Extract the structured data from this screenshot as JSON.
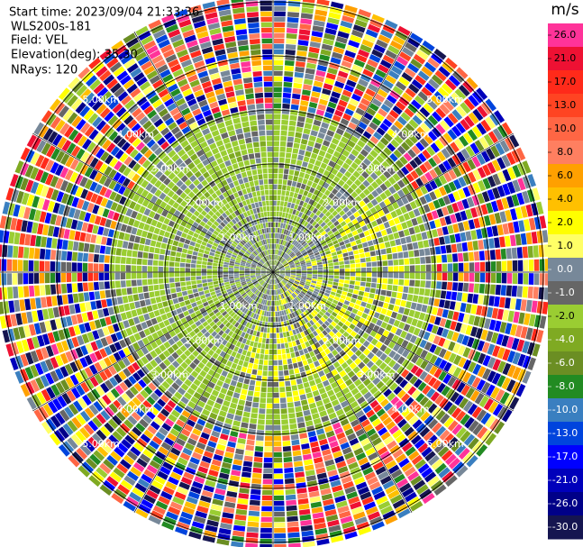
{
  "header": {
    "start_time": "Start time: 2023/09/04 21:33:36",
    "instrument": "WLS200s-181",
    "field": "Field: VEL",
    "elevation": "Elevation(deg): 35.30",
    "nrays": "NRays: 120"
  },
  "range_rings": [
    "1.00km",
    "2.00km",
    "3.00km",
    "4.00km",
    "5.00km"
  ],
  "colorbar": {
    "units": "m/s",
    "ticks": [
      {
        "value": 26,
        "label": "26.0"
      },
      {
        "value": 21,
        "label": "21.0"
      },
      {
        "value": 17,
        "label": "17.0"
      },
      {
        "value": 13,
        "label": "13.0"
      },
      {
        "value": 10,
        "label": "10.0"
      },
      {
        "value": 8,
        "label": "8.0"
      },
      {
        "value": 6,
        "label": "6.0"
      },
      {
        "value": 4,
        "label": "4.0"
      },
      {
        "value": 2,
        "label": "2.0"
      },
      {
        "value": 1,
        "label": "1.0"
      },
      {
        "value": 0,
        "label": "0.0"
      },
      {
        "value": -1,
        "label": "-1.0"
      },
      {
        "value": -2,
        "label": "-2.0"
      },
      {
        "value": -4,
        "label": "-4.0"
      },
      {
        "value": -6,
        "label": "-6.0"
      },
      {
        "value": -8,
        "label": "-8.0"
      },
      {
        "value": -10,
        "label": "-10.0"
      },
      {
        "value": -13,
        "label": "-13.0"
      },
      {
        "value": -17,
        "label": "-17.0"
      },
      {
        "value": -21,
        "label": "-21.0"
      },
      {
        "value": -26,
        "label": "-26.0"
      },
      {
        "value": -30,
        "label": "-30.0"
      }
    ],
    "colors": [
      "#ff3399",
      "#ee1133",
      "#ff2a1a",
      "#ff4422",
      "#ff6644",
      "#ff7f60",
      "#ffa000",
      "#ffc000",
      "#ffff00",
      "#ffff66",
      "#778899",
      "#666666",
      "#9acd32",
      "#7faa22",
      "#6b8e23",
      "#228b22",
      "#3a7fc0",
      "#0044dd",
      "#0000ff",
      "#0000bb",
      "#000088",
      "#151550"
    ]
  }
}
